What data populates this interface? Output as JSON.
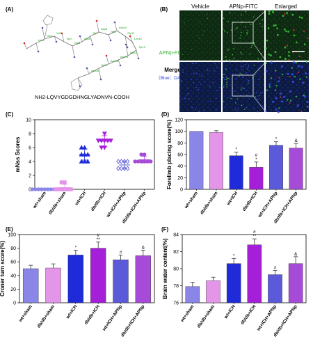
{
  "panel_labels": {
    "a": "(A)",
    "b": "(B)",
    "c": "(C)",
    "d": "(D)",
    "e": "(E)",
    "f": "(F)"
  },
  "panel_a": {
    "sequence": "NH2-LQVYGDGDHNGLYADNVN-COOH",
    "residues": [
      "Leu1",
      "Gln2",
      "Val3",
      "Tyr4",
      "Gly5",
      "Asp6",
      "Gly7",
      "Asp8",
      "His9",
      "Asn10",
      "Gly11",
      "Leu12",
      "Tyr13",
      "Ala14",
      "Asp15",
      "Asn16",
      "Val17",
      "Asn18"
    ]
  },
  "panel_b": {
    "col_headers": [
      "Vehicle",
      "APNp-FITC",
      "Enlarged"
    ],
    "row1_label": "APNp-FITC",
    "row2_label_line1": "Merge",
    "row2_label_line2": "（Blue：DAPI）",
    "colors": {
      "green": "#39c93a",
      "blue": "#3a4de6",
      "red": "#e0303a"
    }
  },
  "groups": [
    "wt+sham",
    "db/db+sham",
    "wt+ICH",
    "db/db+ICH",
    "wt+ICH+APNp",
    "db/db+ICH+APNp"
  ],
  "group_colors": [
    "#8a86e8",
    "#e395e8",
    "#1f2bd8",
    "#a61fd8",
    "#5b5ad8",
    "#a64ad8"
  ],
  "chart_data": [
    {
      "id": "C",
      "type": "scatter",
      "ylabel": "mNss Scores",
      "ylim": [
        0,
        10
      ],
      "yticks": [
        0,
        2,
        4,
        6,
        8,
        10
      ],
      "markers": [
        "circle",
        "square",
        "triangle-up",
        "triangle-down",
        "diamond",
        "circle"
      ],
      "series": [
        {
          "values": [
            0,
            0,
            0,
            0,
            0,
            0,
            0,
            0
          ],
          "mean": 0,
          "sd": 0.1
        },
        {
          "values": [
            0,
            0,
            0,
            0,
            1,
            1,
            0,
            0
          ],
          "mean": 0.25,
          "sd": 0.46
        },
        {
          "values": [
            4,
            4,
            5,
            5,
            6,
            5,
            4,
            6
          ],
          "mean": 5.0,
          "sd": 0.8
        },
        {
          "values": [
            7,
            6,
            7,
            8,
            7,
            7,
            6,
            7
          ],
          "mean": 6.9,
          "sd": 0.8
        },
        {
          "values": [
            3,
            4,
            3,
            4,
            3,
            4,
            4,
            3
          ],
          "mean": 3.5,
          "sd": 0.55
        },
        {
          "values": [
            4,
            5,
            4,
            4,
            5,
            4,
            4,
            4
          ],
          "mean": 4.25,
          "sd": 0.46
        }
      ]
    },
    {
      "id": "D",
      "type": "bar",
      "ylabel": "Forelimb placing score(%)",
      "ylim": [
        0,
        120
      ],
      "yticks": [
        0,
        20,
        40,
        60,
        80,
        100,
        120
      ],
      "values": [
        100,
        98,
        58,
        38,
        76,
        71
      ],
      "errors": [
        0,
        3,
        6,
        9,
        6,
        8
      ],
      "annotations": [
        "",
        "",
        "*",
        "#\n*",
        "*",
        "&"
      ]
    },
    {
      "id": "E",
      "type": "bar",
      "ylabel": "Croner turn score(%)",
      "ylim": [
        0,
        100
      ],
      "yticks": [
        0,
        20,
        40,
        60,
        80,
        100
      ],
      "values": [
        50,
        51,
        70,
        80,
        63,
        69
      ],
      "errors": [
        5,
        6,
        7,
        9,
        7,
        8
      ],
      "annotations": [
        "",
        "",
        "*",
        "#\n**",
        "#",
        "&"
      ]
    },
    {
      "id": "F",
      "type": "bar",
      "ylabel": "Brain water content(%)",
      "ylim": [
        76,
        84
      ],
      "yticks": [
        76,
        78,
        80,
        82,
        84
      ],
      "values": [
        77.9,
        78.6,
        80.6,
        82.8,
        79.3,
        80.6
      ],
      "errors": [
        0.5,
        0.4,
        0.6,
        0.7,
        0.5,
        0.8
      ],
      "annotations": [
        "",
        "",
        "*",
        "#\n**",
        "#",
        "&"
      ]
    }
  ]
}
